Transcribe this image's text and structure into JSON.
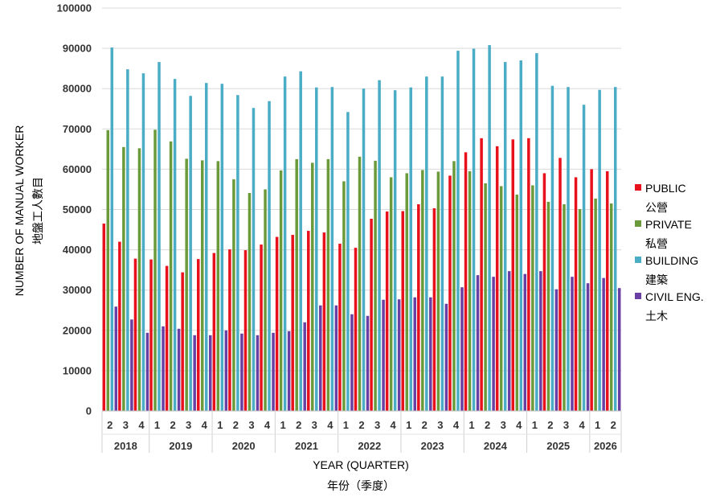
{
  "chart_data": {
    "type": "bar",
    "xlabel": "YEAR (QUARTER)",
    "xlabel_sub": "年份（季度）",
    "ylabel": "NUMBER OF MANUAL WORKER",
    "ylabel_sub": "地盤工人數目",
    "ylim": [
      0,
      100000
    ],
    "yticks": [
      0,
      10000,
      20000,
      30000,
      40000,
      50000,
      60000,
      70000,
      80000,
      90000,
      100000
    ],
    "grid": true,
    "legend_position": "right",
    "years": [
      {
        "label": "2018",
        "quarters": [
          "2",
          "3",
          "4"
        ]
      },
      {
        "label": "2019",
        "quarters": [
          "1",
          "2",
          "3",
          "4"
        ]
      },
      {
        "label": "2020",
        "quarters": [
          "1",
          "2",
          "3",
          "4"
        ]
      },
      {
        "label": "2021",
        "quarters": [
          "1",
          "2",
          "3",
          "4"
        ]
      },
      {
        "label": "2022",
        "quarters": [
          "1",
          "2",
          "3",
          "4"
        ]
      },
      {
        "label": "2023",
        "quarters": [
          "1",
          "2",
          "3",
          "4"
        ]
      },
      {
        "label": "2024",
        "quarters": [
          "1",
          "2",
          "3",
          "4"
        ]
      },
      {
        "label": "2025",
        "quarters": [
          "1",
          "2",
          "3",
          "4"
        ]
      },
      {
        "label": "2026",
        "quarters": [
          "1",
          "2"
        ]
      }
    ],
    "series": [
      {
        "name": "PUBLIC",
        "name_sub": "公營",
        "color": "#e8101a",
        "values": [
          46500,
          42000,
          37800,
          37600,
          36000,
          34400,
          37700,
          39200,
          40100,
          39900,
          41300,
          43200,
          43700,
          44700,
          44300,
          41500,
          40500,
          47700,
          49500,
          49600,
          51300,
          50300,
          58400,
          64200,
          67700,
          65700,
          67400,
          67700,
          59000,
          62800,
          58000,
          60000,
          59500
        ]
      },
      {
        "name": "PRIVATE",
        "name_sub": "私營",
        "color": "#6a9a3a",
        "values": [
          69700,
          65500,
          65200,
          69800,
          66900,
          62600,
          62200,
          62000,
          57500,
          54100,
          55000,
          59700,
          62500,
          61600,
          62500,
          57000,
          63100,
          62100,
          58000,
          59000,
          59800,
          59400,
          62000,
          59500,
          56500,
          55800,
          53700,
          56000,
          51900,
          51300,
          50100,
          52700,
          51500
        ]
      },
      {
        "name": "BUILDING",
        "name_sub": "建築",
        "color": "#4aacc5",
        "values": [
          90200,
          84800,
          83800,
          86600,
          82400,
          78200,
          81400,
          81200,
          78400,
          75200,
          76900,
          83000,
          84300,
          80300,
          80400,
          74200,
          80000,
          82100,
          79600,
          80300,
          83000,
          83000,
          89400,
          89900,
          90800,
          86600,
          87000,
          88800,
          80700,
          80400,
          76000,
          79700,
          80400
        ]
      },
      {
        "name": "CIVIL ENG.",
        "name_sub": "土木",
        "color": "#6a3fa3",
        "values": [
          25900,
          22700,
          19400,
          21000,
          20400,
          18800,
          18800,
          20000,
          19200,
          18800,
          19400,
          19800,
          22000,
          26200,
          26200,
          24000,
          23600,
          27600,
          27700,
          28200,
          28200,
          26600,
          30700,
          33700,
          33300,
          34700,
          34000,
          34700,
          30200,
          33300,
          31700,
          33000,
          30500
        ]
      }
    ]
  }
}
